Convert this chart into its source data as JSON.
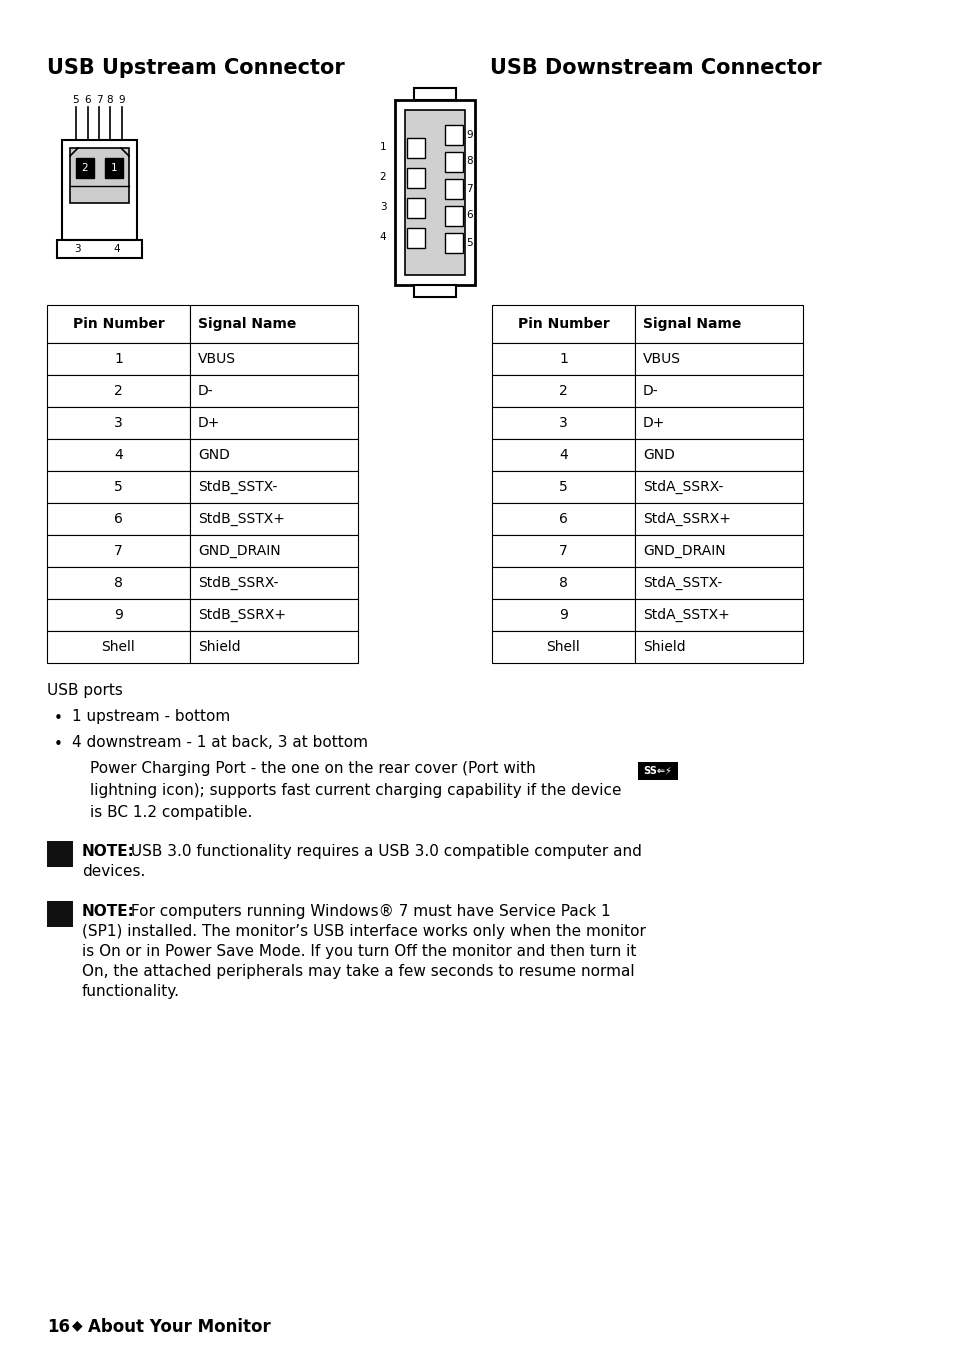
{
  "title_upstream": "USB Upstream Connector",
  "title_downstream": "USB Downstream Connector",
  "upstream_table_header": [
    "Pin Number",
    "Signal Name"
  ],
  "upstream_table_rows": [
    [
      "1",
      "VBUS"
    ],
    [
      "2",
      "D-"
    ],
    [
      "3",
      "D+"
    ],
    [
      "4",
      "GND"
    ],
    [
      "5",
      "StdB_SSTX-"
    ],
    [
      "6",
      "StdB_SSTX+"
    ],
    [
      "7",
      "GND_DRAIN"
    ],
    [
      "8",
      "StdB_SSRX-"
    ],
    [
      "9",
      "StdB_SSRX+"
    ],
    [
      "Shell",
      "Shield"
    ]
  ],
  "downstream_table_header": [
    "Pin Number",
    "Signal Name"
  ],
  "downstream_table_rows": [
    [
      "1",
      "VBUS"
    ],
    [
      "2",
      "D-"
    ],
    [
      "3",
      "D+"
    ],
    [
      "4",
      "GND"
    ],
    [
      "5",
      "StdA_SSRX-"
    ],
    [
      "6",
      "StdA_SSRX+"
    ],
    [
      "7",
      "GND_DRAIN"
    ],
    [
      "8",
      "StdA_SSTX-"
    ],
    [
      "9",
      "StdA_SSTX+"
    ],
    [
      "Shell",
      "Shield"
    ]
  ],
  "usb_ports_text": "USB ports",
  "bullet1": "1 upstream - bottom",
  "bullet2": "4 downstream - 1 at back, 3 at bottom",
  "power_charging_line1": "Power Charging Port - the one on the rear cover (Port with",
  "power_charging_line2": "lightning icon); supports fast current charging capability if the device",
  "power_charging_line3": "is BC 1.2 compatible.",
  "note1_bold": "NOTE:",
  "note1_rest": " USB 3.0 functionality requires a USB 3.0 compatible computer and",
  "note1_line2": "devices.",
  "note2_bold": "NOTE:",
  "note2_rest": " For computers running Windows® 7 must have Service Pack 1",
  "note2_line2": "(SP1) installed. The monitor’s USB interface works only when the monitor",
  "note2_line3": "is On or in Power Save Mode. If you turn Off the monitor and then turn it",
  "note2_line4": "On, the attached peripherals may take a few seconds to resume normal",
  "note2_line5": "functionality.",
  "footer_num": "16",
  "footer_diamond": "◆",
  "footer_label": "About Your Monitor",
  "bg_color": "#ffffff"
}
